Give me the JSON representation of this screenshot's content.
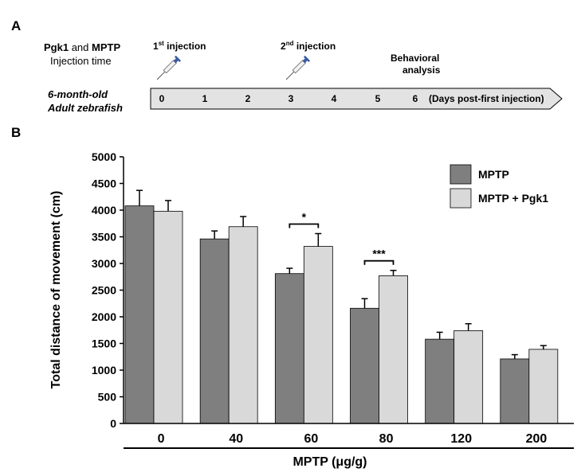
{
  "panel_a": {
    "letter": "A",
    "legend_line1_bold1": "Pgk1",
    "legend_line1_mid": "and",
    "legend_line1_bold2": "MPTP",
    "legend_line2": "Injection time",
    "injection1_num": "1",
    "injection1_sup": "st",
    "injection1_text": "injection",
    "injection2_num": "2",
    "injection2_sup": "nd",
    "injection2_text": "injection",
    "behavioral_line1": "Behavioral",
    "behavioral_line2": "analysis",
    "fish_line1": "6-month-old",
    "fish_line2": "Adult zebrafish",
    "days": [
      "0",
      "1",
      "2",
      "3",
      "4",
      "5",
      "6"
    ],
    "days_label": "(Days post-first injection)",
    "injection_days": [
      0,
      3
    ],
    "colors": {
      "arrow_fill": "#e3e3e3",
      "syringe_plunger": "#3a5aa0"
    }
  },
  "panel_b": {
    "letter": "B"
  },
  "chart_data": {
    "type": "bar",
    "categories": [
      "0",
      "40",
      "60",
      "80",
      "120",
      "200"
    ],
    "series": [
      {
        "name": "MPTP",
        "values": [
          4080,
          3460,
          2810,
          2160,
          1580,
          1210
        ],
        "errors": [
          290,
          150,
          100,
          180,
          130,
          80
        ],
        "color": "#7f7f7f"
      },
      {
        "name": "MPTP + Pgk1",
        "values": [
          3980,
          3690,
          3320,
          2770,
          1740,
          1390
        ],
        "errors": [
          200,
          190,
          240,
          100,
          130,
          70
        ],
        "color": "#d9d9d9"
      }
    ],
    "ylabel": "Total distance of movement (cm)",
    "xlabel": "MPTP (μg/g)",
    "ylim": [
      0,
      5000
    ],
    "yticks": [
      0,
      500,
      1000,
      1500,
      2000,
      2500,
      3000,
      3500,
      4000,
      4500,
      5000
    ],
    "grid": false,
    "legend_position": "top-right",
    "significance": [
      {
        "category": "60",
        "label": "*"
      },
      {
        "category": "80",
        "label": "***"
      }
    ]
  }
}
